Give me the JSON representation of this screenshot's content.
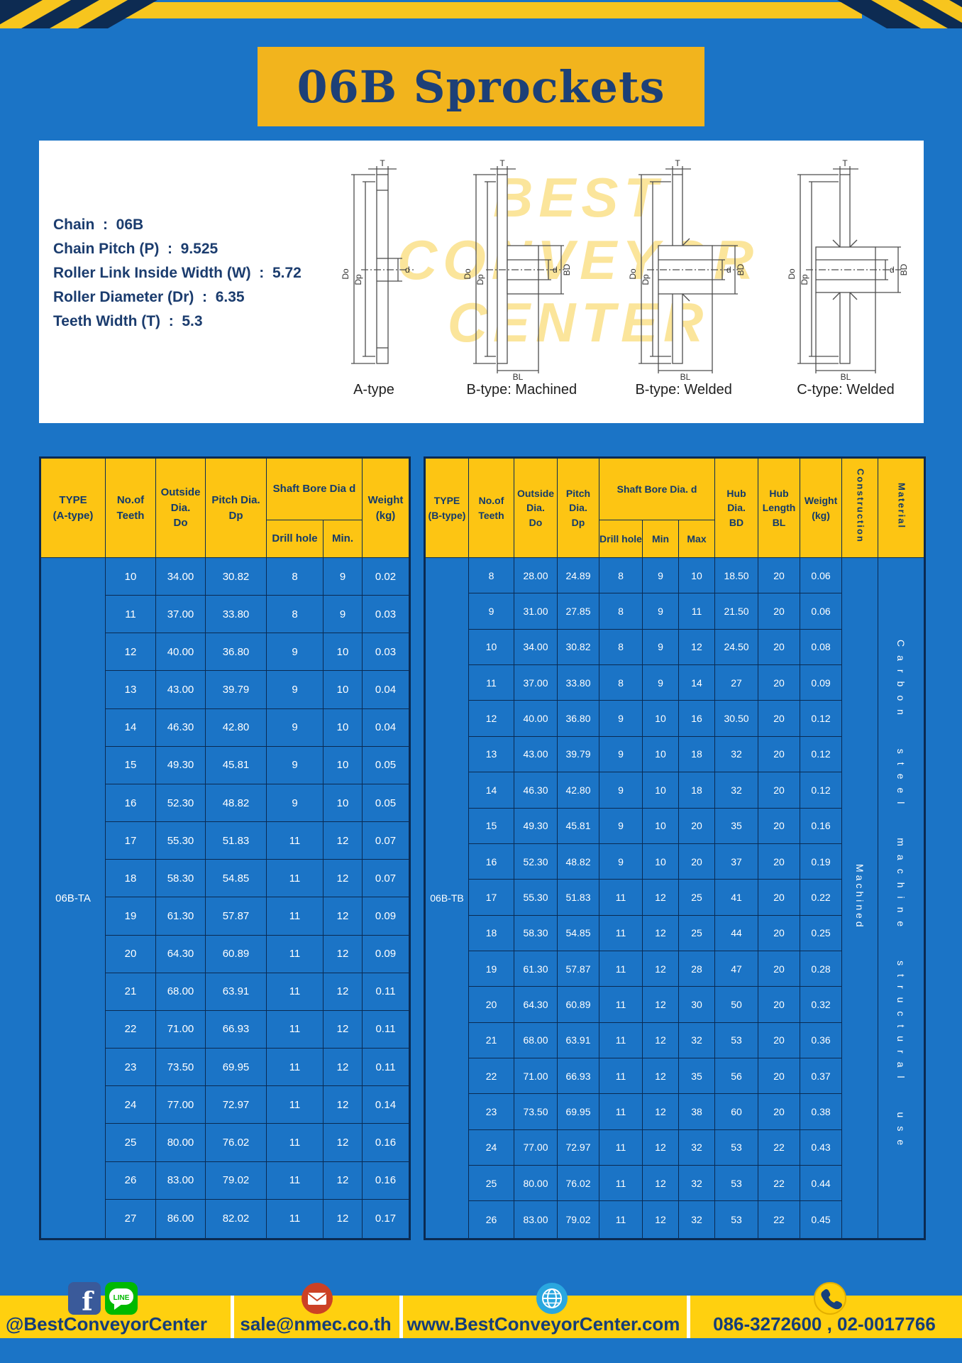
{
  "title": "06B Sprockets",
  "specs": {
    "lines": [
      "Chain  :  06B",
      "Chain Pitch (P)  :  9.525",
      "Roller Link Inside Width (W)  :  5.72",
      "Roller Diameter (Dr)  :  6.35",
      "Teeth Width (T)  :  5.3"
    ]
  },
  "watermark": {
    "lines": [
      "BEST",
      "CONVEYOR",
      "CENTER"
    ]
  },
  "diagrams": {
    "captions": [
      "A-type",
      "B-type: Machined",
      "B-type: Welded",
      "C-type: Welded"
    ],
    "labels": {
      "do": "Do",
      "dp": "Dp",
      "d": "d",
      "t": "T",
      "bd": "BD",
      "bl": "BL"
    }
  },
  "table_a": {
    "headers": {
      "type": "TYPE\n(A-type)",
      "teeth": "No.of\nTeeth",
      "outside": "Outside\nDia.\nDo",
      "pitch": "Pitch Dia.\nDp",
      "shaft_bore": "Shaft Bore Dia d",
      "drill_hole": "Drill hole",
      "min": "Min.",
      "weight": "Weight\n(kg)"
    },
    "type_label": "06B-TA",
    "rows": [
      [
        "10",
        "34.00",
        "30.82",
        "8",
        "9",
        "0.02"
      ],
      [
        "11",
        "37.00",
        "33.80",
        "8",
        "9",
        "0.03"
      ],
      [
        "12",
        "40.00",
        "36.80",
        "9",
        "10",
        "0.03"
      ],
      [
        "13",
        "43.00",
        "39.79",
        "9",
        "10",
        "0.04"
      ],
      [
        "14",
        "46.30",
        "42.80",
        "9",
        "10",
        "0.04"
      ],
      [
        "15",
        "49.30",
        "45.81",
        "9",
        "10",
        "0.05"
      ],
      [
        "16",
        "52.30",
        "48.82",
        "9",
        "10",
        "0.05"
      ],
      [
        "17",
        "55.30",
        "51.83",
        "11",
        "12",
        "0.07"
      ],
      [
        "18",
        "58.30",
        "54.85",
        "11",
        "12",
        "0.07"
      ],
      [
        "19",
        "61.30",
        "57.87",
        "11",
        "12",
        "0.09"
      ],
      [
        "20",
        "64.30",
        "60.89",
        "11",
        "12",
        "0.09"
      ],
      [
        "21",
        "68.00",
        "63.91",
        "11",
        "12",
        "0.11"
      ],
      [
        "22",
        "71.00",
        "66.93",
        "11",
        "12",
        "0.11"
      ],
      [
        "23",
        "73.50",
        "69.95",
        "11",
        "12",
        "0.11"
      ],
      [
        "24",
        "77.00",
        "72.97",
        "11",
        "12",
        "0.14"
      ],
      [
        "25",
        "80.00",
        "76.02",
        "11",
        "12",
        "0.16"
      ],
      [
        "26",
        "83.00",
        "79.02",
        "11",
        "12",
        "0.16"
      ],
      [
        "27",
        "86.00",
        "82.02",
        "11",
        "12",
        "0.17"
      ]
    ]
  },
  "table_b": {
    "headers": {
      "type": "TYPE\n(B-type)",
      "teeth": "No.of\nTeeth",
      "outside": "Outside\nDia.\nDo",
      "pitch": "Pitch\nDia.\nDp",
      "shaft_bore": "Shaft Bore Dia.  d",
      "drill_hole": "Drill hole",
      "min": "Min",
      "max": "Max",
      "hub_dia": "Hub\nDia.\nBD",
      "hub_len": "Hub\nLength\nBL",
      "weight": "Weight\n(kg)",
      "construction": "Construction",
      "material": "Material"
    },
    "type_label": "06B-TB",
    "construction_value": "Machined",
    "material_value": "Carbon steel machine structural use",
    "rows": [
      [
        "8",
        "28.00",
        "24.89",
        "8",
        "9",
        "10",
        "18.50",
        "20",
        "0.06"
      ],
      [
        "9",
        "31.00",
        "27.85",
        "8",
        "9",
        "11",
        "21.50",
        "20",
        "0.06"
      ],
      [
        "10",
        "34.00",
        "30.82",
        "8",
        "9",
        "12",
        "24.50",
        "20",
        "0.08"
      ],
      [
        "11",
        "37.00",
        "33.80",
        "8",
        "9",
        "14",
        "27",
        "20",
        "0.09"
      ],
      [
        "12",
        "40.00",
        "36.80",
        "9",
        "10",
        "16",
        "30.50",
        "20",
        "0.12"
      ],
      [
        "13",
        "43.00",
        "39.79",
        "9",
        "10",
        "18",
        "32",
        "20",
        "0.12"
      ],
      [
        "14",
        "46.30",
        "42.80",
        "9",
        "10",
        "18",
        "32",
        "20",
        "0.12"
      ],
      [
        "15",
        "49.30",
        "45.81",
        "9",
        "10",
        "20",
        "35",
        "20",
        "0.16"
      ],
      [
        "16",
        "52.30",
        "48.82",
        "9",
        "10",
        "20",
        "37",
        "20",
        "0.19"
      ],
      [
        "17",
        "55.30",
        "51.83",
        "11",
        "12",
        "25",
        "41",
        "20",
        "0.22"
      ],
      [
        "18",
        "58.30",
        "54.85",
        "11",
        "12",
        "25",
        "44",
        "20",
        "0.25"
      ],
      [
        "19",
        "61.30",
        "57.87",
        "11",
        "12",
        "28",
        "47",
        "20",
        "0.28"
      ],
      [
        "20",
        "64.30",
        "60.89",
        "11",
        "12",
        "30",
        "50",
        "20",
        "0.32"
      ],
      [
        "21",
        "68.00",
        "63.91",
        "11",
        "12",
        "32",
        "53",
        "20",
        "0.36"
      ],
      [
        "22",
        "71.00",
        "66.93",
        "11",
        "12",
        "35",
        "56",
        "20",
        "0.37"
      ],
      [
        "23",
        "73.50",
        "69.95",
        "11",
        "12",
        "38",
        "60",
        "20",
        "0.38"
      ],
      [
        "24",
        "77.00",
        "72.97",
        "11",
        "12",
        "32",
        "53",
        "22",
        "0.43"
      ],
      [
        "25",
        "80.00",
        "76.02",
        "11",
        "12",
        "32",
        "53",
        "22",
        "0.44"
      ],
      [
        "26",
        "83.00",
        "79.02",
        "11",
        "12",
        "32",
        "53",
        "22",
        "0.45"
      ]
    ]
  },
  "footer": {
    "social": "@BestConveyorCenter",
    "email": "sale@nmec.co.th",
    "website": "www.BestConveyorCenter.com",
    "phone": "086-3272600 , 02-0017766",
    "icons": {
      "facebook_label": "f",
      "line_label": "LINE"
    }
  }
}
